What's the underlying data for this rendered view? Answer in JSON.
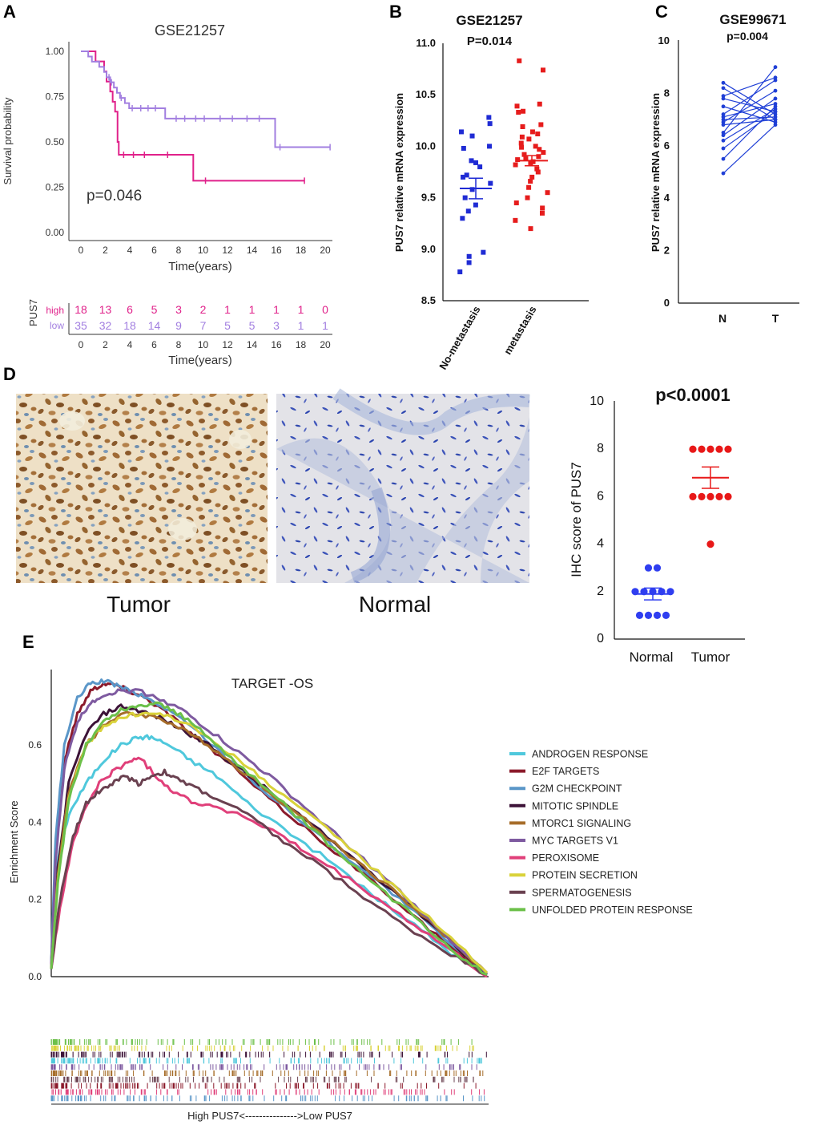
{
  "colors": {
    "km_high": "#e0218a",
    "km_low": "#a27fe0",
    "scatter_low": "#1f2bd4",
    "scatter_high": "#e61c1c",
    "paired": "#1f3fd6",
    "ihc_normal": "#2f3ef0",
    "ihc_tumor": "#e81818"
  },
  "chart_data": [
    {
      "panel": "A",
      "type": "line",
      "subtype": "kaplan-meier",
      "title": "GSE21257",
      "xlabel": "Time(years)",
      "ylabel": "Survival probability",
      "xlim": [
        0,
        21
      ],
      "ylim": [
        0,
        1
      ],
      "xticks": [
        "0",
        "2",
        "4",
        "6",
        "8",
        "10",
        "12",
        "14",
        "16",
        "18",
        "20"
      ],
      "yticks": [
        "0.00",
        "0.25",
        "0.50",
        "0.75",
        "1.00"
      ],
      "annotation": "p=0.046",
      "series": [
        {
          "name": "high",
          "steps": [
            [
              0,
              1.0
            ],
            [
              1.2,
              0.944
            ],
            [
              1.9,
              0.889
            ],
            [
              2.1,
              0.833
            ],
            [
              2.4,
              0.778
            ],
            [
              2.6,
              0.722
            ],
            [
              2.8,
              0.667
            ],
            [
              3.0,
              0.5
            ],
            [
              3.1,
              0.429
            ],
            [
              9.2,
              0.286
            ],
            [
              18.3,
              0.286
            ]
          ],
          "censors": [
            [
              3.5,
              0.429
            ],
            [
              4.3,
              0.429
            ],
            [
              5.2,
              0.429
            ],
            [
              7.1,
              0.429
            ],
            [
              10.2,
              0.286
            ],
            [
              18.3,
              0.286
            ]
          ]
        },
        {
          "name": "low",
          "steps": [
            [
              0,
              1.0
            ],
            [
              0.6,
              0.971
            ],
            [
              0.9,
              0.943
            ],
            [
              1.5,
              0.914
            ],
            [
              1.9,
              0.886
            ],
            [
              2.1,
              0.857
            ],
            [
              2.4,
              0.829
            ],
            [
              2.7,
              0.8
            ],
            [
              2.95,
              0.771
            ],
            [
              3.2,
              0.743
            ],
            [
              3.6,
              0.714
            ],
            [
              3.95,
              0.686
            ],
            [
              6.9,
              0.629
            ],
            [
              15.9,
              0.471
            ],
            [
              20.4,
              0.471
            ]
          ],
          "censors": [
            [
              2.3,
              0.857
            ],
            [
              2.5,
              0.829
            ],
            [
              3.3,
              0.743
            ],
            [
              4.2,
              0.686
            ],
            [
              4.9,
              0.686
            ],
            [
              5.5,
              0.686
            ],
            [
              6.1,
              0.686
            ],
            [
              7.8,
              0.629
            ],
            [
              8.5,
              0.629
            ],
            [
              9.4,
              0.629
            ],
            [
              10.1,
              0.629
            ],
            [
              11.4,
              0.629
            ],
            [
              12.4,
              0.629
            ],
            [
              13.6,
              0.629
            ],
            [
              14.6,
              0.629
            ],
            [
              16.3,
              0.471
            ],
            [
              20.4,
              0.471
            ]
          ]
        }
      ],
      "risk_table": {
        "strata_label": "PUS7",
        "times": [
          "0",
          "2",
          "4",
          "6",
          "8",
          "10",
          "12",
          "14",
          "16",
          "18",
          "20"
        ],
        "high": {
          "label": "high",
          "counts": [
            "18",
            "13",
            "6",
            "5",
            "3",
            "2",
            "1",
            "1",
            "1",
            "1",
            "0"
          ]
        },
        "low": {
          "label": "low",
          "counts": [
            "35",
            "32",
            "18",
            "14",
            "9",
            "7",
            "5",
            "5",
            "3",
            "1",
            "1"
          ]
        },
        "xlabel": "Time(years)"
      }
    },
    {
      "panel": "B",
      "type": "scatter",
      "title": "GSE21257",
      "pvalue": "P=0.014",
      "ylabel": "PUS7 relative mRNA expression",
      "ylim": [
        8.5,
        11.0
      ],
      "yticks": [
        "8.5",
        "9.0",
        "9.5",
        "10.0",
        "10.5",
        "11.0"
      ],
      "categories": [
        "No-metastasis",
        "metastasis"
      ],
      "series": [
        {
          "name": "No-metastasis",
          "mean": 9.59,
          "sem": 0.1,
          "values": [
            10.28,
            10.22,
            10.14,
            10.1,
            10.0,
            9.98,
            9.86,
            9.84,
            9.8,
            9.72,
            9.7,
            9.64,
            9.58,
            9.5,
            9.43,
            9.37,
            9.3,
            8.97,
            8.93,
            8.87,
            8.78
          ]
        },
        {
          "name": "metastasis",
          "mean": 9.86,
          "sem": 0.05,
          "values": [
            10.83,
            10.74,
            10.41,
            10.39,
            10.34,
            10.33,
            10.21,
            10.19,
            10.14,
            10.12,
            10.09,
            10.07,
            10.03,
            10.0,
            9.99,
            9.97,
            9.94,
            9.92,
            9.9,
            9.88,
            9.87,
            9.85,
            9.84,
            9.82,
            9.78,
            9.75,
            9.7,
            9.66,
            9.6,
            9.55,
            9.5,
            9.45,
            9.4,
            9.35,
            9.28,
            9.2
          ]
        }
      ]
    },
    {
      "panel": "C",
      "type": "line",
      "subtype": "paired",
      "title": "GSE99671",
      "pvalue": "p=0.004",
      "ylabel": "PUS7 relative mRNA expression",
      "ylim": [
        0,
        10
      ],
      "yticks": [
        "0",
        "2",
        "4",
        "6",
        "8",
        "10"
      ],
      "categories": [
        "N",
        "T"
      ],
      "pairs": [
        [
          8.4,
          7.2
        ],
        [
          8.2,
          7.0
        ],
        [
          7.9,
          8.6
        ],
        [
          7.8,
          7.3
        ],
        [
          7.5,
          6.9
        ],
        [
          7.2,
          8.5
        ],
        [
          7.1,
          7.6
        ],
        [
          7.0,
          7.1
        ],
        [
          6.9,
          8.1
        ],
        [
          6.8,
          7.0
        ],
        [
          6.5,
          9.0
        ],
        [
          6.4,
          7.8
        ],
        [
          6.2,
          7.4
        ],
        [
          5.9,
          7.3
        ],
        [
          5.5,
          7.5
        ],
        [
          4.95,
          6.8
        ]
      ]
    },
    {
      "panel": "D",
      "type": "scatter",
      "title": "p<0.0001",
      "ylabel": "IHC score of PUS7",
      "ylim": [
        0,
        10
      ],
      "yticks": [
        "0",
        "2",
        "4",
        "6",
        "8",
        "10"
      ],
      "categories": [
        "Normal",
        "Tumor"
      ],
      "series": [
        {
          "name": "Normal",
          "mean": 1.9,
          "sem": 0.25,
          "values": [
            3,
            3,
            2,
            2,
            2,
            2,
            2,
            1,
            1,
            1,
            1
          ]
        },
        {
          "name": "Tumor",
          "mean": 6.8,
          "sem": 0.45,
          "values": [
            8,
            8,
            8,
            8,
            8,
            6,
            6,
            6,
            6,
            6,
            4
          ]
        }
      ]
    },
    {
      "panel": "E",
      "type": "line",
      "subtype": "gsea",
      "title": "TARGET -OS",
      "ylabel": "Enrichment Score",
      "xlabel": "High PUS7<--------------->Low PUS7",
      "xlim": [
        0,
        1
      ],
      "ylim": [
        0,
        0.8
      ],
      "yticks": [
        "0.0",
        "0.2",
        "0.4",
        "0.6"
      ],
      "series": [
        {
          "name": "ANDROGEN RESPONSE",
          "color": "#4fc8dc",
          "x": [
            0,
            0.015,
            0.04,
            0.08,
            0.12,
            0.16,
            0.2,
            0.23,
            0.27,
            0.32,
            0.38,
            0.45,
            0.55,
            0.65,
            0.75,
            0.85,
            0.93,
            1.0
          ],
          "y": [
            0.02,
            0.3,
            0.42,
            0.5,
            0.56,
            0.6,
            0.62,
            0.62,
            0.6,
            0.56,
            0.52,
            0.45,
            0.37,
            0.29,
            0.2,
            0.12,
            0.05,
            0.01
          ]
        },
        {
          "name": "E2F TARGETS",
          "color": "#8b1a2b",
          "x": [
            0,
            0.01,
            0.03,
            0.06,
            0.09,
            0.12,
            0.15,
            0.18,
            0.22,
            0.27,
            0.33,
            0.4,
            0.5,
            0.6,
            0.7,
            0.8,
            0.9,
            1.0
          ],
          "y": [
            0.03,
            0.32,
            0.56,
            0.68,
            0.74,
            0.76,
            0.755,
            0.74,
            0.72,
            0.68,
            0.62,
            0.56,
            0.46,
            0.37,
            0.28,
            0.19,
            0.09,
            0.005
          ]
        },
        {
          "name": "G2M CHECKPOINT",
          "color": "#5a96c8",
          "x": [
            0,
            0.01,
            0.03,
            0.06,
            0.09,
            0.12,
            0.15,
            0.18,
            0.22,
            0.27,
            0.33,
            0.4,
            0.5,
            0.6,
            0.7,
            0.8,
            0.9,
            1.0
          ],
          "y": [
            0.04,
            0.36,
            0.6,
            0.72,
            0.76,
            0.765,
            0.755,
            0.74,
            0.72,
            0.69,
            0.64,
            0.57,
            0.47,
            0.38,
            0.29,
            0.2,
            0.1,
            0.005
          ]
        },
        {
          "name": "MITOTIC SPINDLE",
          "color": "#3d1338",
          "x": [
            0,
            0.015,
            0.04,
            0.08,
            0.12,
            0.16,
            0.2,
            0.25,
            0.3,
            0.36,
            0.43,
            0.5,
            0.6,
            0.7,
            0.8,
            0.9,
            1.0
          ],
          "y": [
            0.02,
            0.28,
            0.5,
            0.63,
            0.68,
            0.7,
            0.69,
            0.67,
            0.64,
            0.6,
            0.54,
            0.48,
            0.39,
            0.3,
            0.21,
            0.11,
            0.005
          ]
        },
        {
          "name": "MTORC1 SIGNALING",
          "color": "#a66d2a",
          "x": [
            0,
            0.015,
            0.04,
            0.08,
            0.12,
            0.16,
            0.2,
            0.25,
            0.3,
            0.36,
            0.43,
            0.5,
            0.6,
            0.7,
            0.8,
            0.9,
            1.0
          ],
          "y": [
            0.02,
            0.26,
            0.48,
            0.6,
            0.65,
            0.68,
            0.68,
            0.67,
            0.64,
            0.6,
            0.54,
            0.48,
            0.39,
            0.3,
            0.21,
            0.11,
            0.01
          ]
        },
        {
          "name": "MYC TARGETS V1",
          "color": "#7e5aa0",
          "x": [
            0,
            0.01,
            0.03,
            0.06,
            0.09,
            0.12,
            0.16,
            0.2,
            0.25,
            0.3,
            0.36,
            0.43,
            0.5,
            0.6,
            0.7,
            0.8,
            0.9,
            1.0
          ],
          "y": [
            0.03,
            0.3,
            0.54,
            0.66,
            0.71,
            0.73,
            0.74,
            0.74,
            0.72,
            0.69,
            0.64,
            0.58,
            0.52,
            0.42,
            0.32,
            0.22,
            0.11,
            0.005
          ]
        },
        {
          "name": "PEROXISOME",
          "color": "#e0407a",
          "x": [
            0,
            0.02,
            0.05,
            0.08,
            0.11,
            0.14,
            0.17,
            0.2,
            0.24,
            0.28,
            0.33,
            0.38,
            0.45,
            0.52,
            0.6,
            0.7,
            0.8,
            0.9,
            1.0
          ],
          "y": [
            0.02,
            0.18,
            0.35,
            0.44,
            0.5,
            0.53,
            0.55,
            0.57,
            0.52,
            0.48,
            0.45,
            0.44,
            0.41,
            0.37,
            0.31,
            0.24,
            0.16,
            0.08,
            0.0
          ]
        },
        {
          "name": "PROTEIN SECRETION",
          "color": "#d9d23a",
          "x": [
            0,
            0.015,
            0.04,
            0.08,
            0.12,
            0.16,
            0.2,
            0.25,
            0.3,
            0.36,
            0.43,
            0.5,
            0.6,
            0.7,
            0.8,
            0.9,
            1.0
          ],
          "y": [
            0.02,
            0.25,
            0.46,
            0.6,
            0.65,
            0.67,
            0.68,
            0.68,
            0.66,
            0.62,
            0.56,
            0.5,
            0.41,
            0.32,
            0.22,
            0.12,
            0.01
          ]
        },
        {
          "name": "SPERMATOGENESIS",
          "color": "#6a4150",
          "x": [
            0,
            0.02,
            0.05,
            0.08,
            0.11,
            0.14,
            0.17,
            0.2,
            0.23,
            0.26,
            0.29,
            0.33,
            0.38,
            0.45,
            0.52,
            0.6,
            0.7,
            0.8,
            0.9,
            1.0
          ],
          "y": [
            0.02,
            0.2,
            0.36,
            0.45,
            0.48,
            0.5,
            0.52,
            0.5,
            0.52,
            0.53,
            0.51,
            0.49,
            0.46,
            0.42,
            0.36,
            0.3,
            0.22,
            0.14,
            0.07,
            0.005
          ]
        },
        {
          "name": "UNFOLDED PROTEIN RESPONSE",
          "color": "#6cc04a",
          "x": [
            0,
            0.015,
            0.04,
            0.08,
            0.12,
            0.16,
            0.2,
            0.24,
            0.28,
            0.33,
            0.4,
            0.48,
            0.56,
            0.65,
            0.75,
            0.85,
            0.93,
            1.0
          ],
          "y": [
            0.02,
            0.24,
            0.46,
            0.6,
            0.66,
            0.69,
            0.7,
            0.71,
            0.69,
            0.65,
            0.58,
            0.5,
            0.42,
            0.33,
            0.23,
            0.14,
            0.06,
            0.005
          ]
        }
      ]
    }
  ],
  "panel_d_images": {
    "left_caption": "Tumor",
    "right_caption": "Normal"
  },
  "panel_letters": [
    "A",
    "B",
    "C",
    "D",
    "E"
  ]
}
